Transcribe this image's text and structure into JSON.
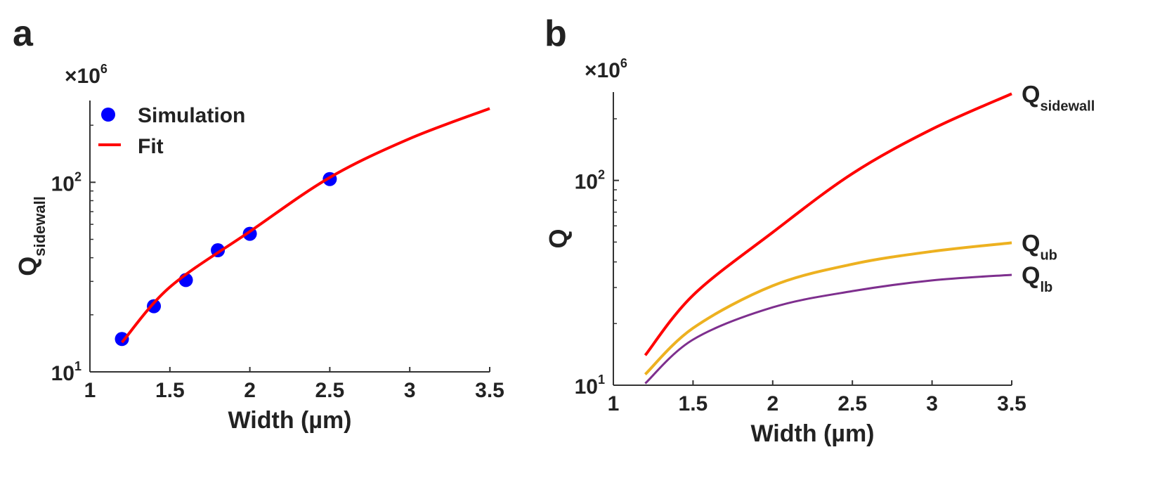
{
  "chart_data": [
    {
      "panel_label": "a",
      "type": "scatter+line",
      "xlabel": "Width (µm)",
      "ylabel": "Q",
      "ylabel_sub": "sidewall",
      "y_multiplier": "×10",
      "y_multiplier_exp": "6",
      "xlim": [
        1,
        3.5
      ],
      "ylim": [
        10,
        270
      ],
      "yscale": "log",
      "xticks": [
        "1",
        "1.5",
        "2",
        "2.5",
        "3",
        "3.5"
      ],
      "yticks": [
        {
          "base": "10",
          "exp": "1"
        },
        {
          "base": "10",
          "exp": "2"
        }
      ],
      "grid": false,
      "legend_position": "top-left",
      "series": [
        {
          "name": "Simulation",
          "kind": "scatter",
          "color": "#0000ff",
          "x": [
            1.2,
            1.4,
            1.6,
            1.8,
            2.0,
            2.5
          ],
          "y": [
            14.9,
            22.2,
            30.5,
            43.8,
            53.5,
            104
          ]
        },
        {
          "name": "Fit",
          "kind": "line",
          "color": "#ff0000",
          "x": [
            1.2,
            1.5,
            2.0,
            2.5,
            3.0,
            3.5
          ],
          "y": [
            14.3,
            28,
            55,
            106,
            170,
            245
          ]
        }
      ]
    },
    {
      "panel_label": "b",
      "type": "line",
      "xlabel": "Width (µm)",
      "ylabel": "Q",
      "y_multiplier": "×10",
      "y_multiplier_exp": "6",
      "xlim": [
        1,
        3.5
      ],
      "ylim": [
        10,
        270
      ],
      "yscale": "log",
      "xticks": [
        "1",
        "1.5",
        "2",
        "2.5",
        "3",
        "3.5"
      ],
      "yticks": [
        {
          "base": "10",
          "exp": "1"
        },
        {
          "base": "10",
          "exp": "2"
        }
      ],
      "grid": false,
      "series": [
        {
          "name": "Q",
          "sub": "sidewall",
          "color": "#ff0000",
          "x": [
            1.2,
            1.5,
            2.0,
            2.5,
            3.0,
            3.5
          ],
          "y": [
            14.0,
            27.5,
            55.8,
            108,
            178,
            265
          ]
        },
        {
          "name": "Q",
          "sub": "ub",
          "color": "#edb120",
          "x": [
            1.2,
            1.5,
            2.0,
            2.5,
            3.0,
            3.5
          ],
          "y": [
            11.3,
            19,
            30.6,
            39,
            45,
            49.6
          ]
        },
        {
          "name": "Q",
          "sub": "lb",
          "color": "#7e2f8e",
          "x": [
            1.2,
            1.5,
            2.0,
            2.5,
            3.0,
            3.5
          ],
          "y": [
            10.2,
            16.7,
            24,
            28.8,
            32.5,
            34.6
          ]
        }
      ]
    }
  ]
}
